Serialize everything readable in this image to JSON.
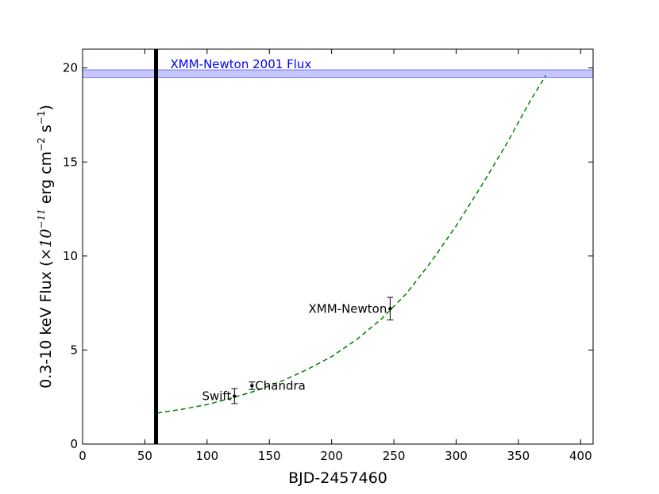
{
  "chart_data": {
    "type": "scatter",
    "xlabel": "BJD-2457460",
    "ylabel_main": "0.3-10 keV Flux (",
    "ylabel_times": "×10",
    "ylabel_exp1": "−11",
    "ylabel_mid": " erg cm",
    "ylabel_exp2": "−2",
    "ylabel_s": " s",
    "ylabel_exp3": "−1",
    "ylabel_close": ")",
    "xlim": [
      0,
      410
    ],
    "ylim": [
      0,
      21
    ],
    "xticks": [
      0,
      50,
      100,
      150,
      200,
      250,
      300,
      350,
      400
    ],
    "yticks": [
      0,
      5,
      10,
      15,
      20
    ],
    "grid": false,
    "points": [
      {
        "label": "Swift",
        "x": 122,
        "y": 2.55,
        "err": 0.4
      },
      {
        "label": "Chandra",
        "x": 136,
        "y": 3.1,
        "err": 0.2
      },
      {
        "label": "XMM-Newton",
        "x": 247,
        "y": 7.2,
        "err": 0.6
      }
    ],
    "vertical_line": {
      "x": 59,
      "color": "#000000"
    },
    "band": {
      "label": "XMM-Newton 2001 Flux",
      "y_low": 19.5,
      "y_high": 19.9,
      "color": "#0000ff"
    },
    "fit_curve": {
      "style": "dashed",
      "color": "#008000",
      "x": [
        60,
        80,
        100,
        120,
        140,
        160,
        180,
        200,
        220,
        240,
        260,
        280,
        300,
        320,
        340,
        360,
        372
      ],
      "y": [
        1.65,
        1.85,
        2.1,
        2.45,
        2.85,
        3.35,
        3.95,
        4.65,
        5.55,
        6.65,
        8.0,
        9.7,
        11.6,
        13.7,
        15.9,
        18.3,
        19.6
      ]
    }
  }
}
